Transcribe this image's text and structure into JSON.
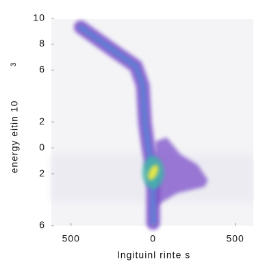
{
  "chart_data": {
    "type": "density",
    "xlabel": "lngituinl rinte s",
    "ylabel": "energy eitin 10",
    "ylabel_superscript": "3",
    "xlim": [
      -620,
      610
    ],
    "ylim": [
      -6,
      11.4
    ],
    "xticks": [
      {
        "value": -500,
        "label": "500"
      },
      0,
      500
    ],
    "yticks": [
      10,
      8,
      6,
      2,
      0,
      {
        "value": -2,
        "label": "2"
      },
      {
        "value": -6,
        "label": "6"
      }
    ],
    "ridge": {
      "x": [
        -441,
        -231,
        -105,
        -63,
        -50,
        -29,
        0,
        0,
        0
      ],
      "y": [
        9.3,
        7.4,
        6.3,
        4.8,
        1.9,
        0,
        -1.9,
        -4.5,
        -5.8
      ]
    },
    "lobe": {
      "x": [
        13,
        83,
        167,
        271,
        334,
        313,
        146,
        13
      ],
      "y": [
        0.5,
        0.8,
        -0.5,
        -1.3,
        -2.5,
        -3.0,
        -3.5,
        -4.5
      ]
    },
    "peak": {
      "x": 0,
      "y": -1.9
    },
    "colors": {
      "outer": "#7b4fc9",
      "inner": "#4f86d6",
      "peak": "#e6e64a"
    }
  }
}
